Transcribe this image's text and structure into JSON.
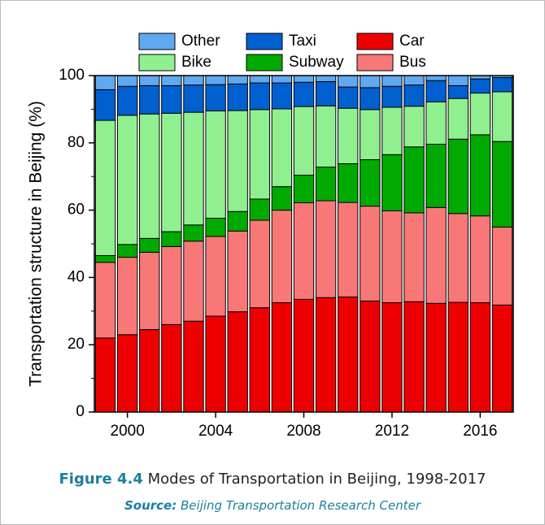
{
  "chart_data": {
    "type": "stacked_bar",
    "y_label": "Transportation structure in Beijing (%)",
    "categories": [
      null,
      "2000",
      null,
      null,
      null,
      "2004",
      null,
      null,
      null,
      "2008",
      null,
      null,
      null,
      "2012",
      null,
      null,
      null,
      "2016",
      null
    ],
    "series": [
      {
        "name": "Car",
        "color": "#ee0000",
        "values": [
          22,
          23,
          24.5,
          26,
          27,
          28.5,
          29.8,
          31,
          32.5,
          33.5,
          34,
          34.2,
          33,
          32.5,
          32.8,
          32.3,
          32.6,
          32.5,
          31.8
        ]
      },
      {
        "name": "Bus",
        "color": "#f87878",
        "values": [
          22.5,
          23,
          23,
          23.2,
          23.8,
          23.7,
          24,
          26,
          27.5,
          28.7,
          28.8,
          28.1,
          28.2,
          27.3,
          26.4,
          28.5,
          26.4,
          25.8,
          23.2
        ]
      },
      {
        "name": "Subway",
        "color": "#00aa00",
        "values": [
          2,
          3.8,
          4.1,
          4.4,
          4.8,
          5.4,
          5.8,
          6.3,
          7,
          8.2,
          10,
          11.5,
          13.8,
          16.7,
          19.6,
          18.8,
          22.1,
          24.1,
          25.4
        ]
      },
      {
        "name": "Bike",
        "color": "#90f090",
        "values": [
          40.2,
          38.4,
          37,
          35.2,
          33.5,
          31.9,
          30,
          26.6,
          23.1,
          20.4,
          18.2,
          16.5,
          14.9,
          14.1,
          12.1,
          12.6,
          12.1,
          12.4,
          14.8
        ]
      },
      {
        "name": "Taxi",
        "color": "#0060d0",
        "values": [
          9.1,
          8.6,
          8.4,
          8.2,
          8.1,
          7.8,
          7.9,
          7.9,
          7.7,
          7.2,
          7.2,
          6.3,
          6.5,
          6.2,
          6.3,
          6.3,
          3.8,
          4.2,
          4.2
        ]
      },
      {
        "name": "Other",
        "color": "#60a8f0",
        "values": [
          4.2,
          3.2,
          3,
          3,
          2.8,
          2.7,
          2.5,
          2.2,
          2.2,
          2,
          1.8,
          3.4,
          3.6,
          3.2,
          2.8,
          1.5,
          3,
          1,
          0.6
        ]
      }
    ],
    "ylim": [
      0,
      100
    ],
    "yticks": [
      0,
      20,
      40,
      60,
      80,
      100
    ],
    "caption_label": "Figure 4.4",
    "caption": "Modes of Transportation in Beijing, 1998-2017",
    "source_label": "Source:",
    "source": "Beijing Transportation Research Center"
  }
}
